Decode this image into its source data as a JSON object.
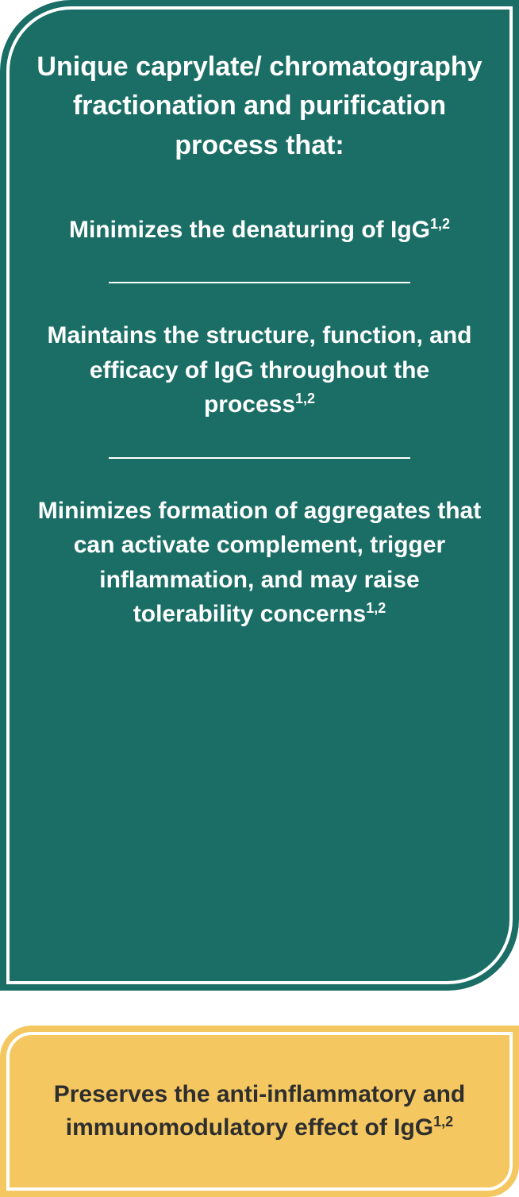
{
  "styles": {
    "main_bg": "#1a6e66",
    "main_text": "#ffffff",
    "border_color": "#ffffff",
    "divider_color": "#ffffff",
    "footer_bg": "#f4c761",
    "footer_text": "#2e2e2e",
    "main_radius": "90px",
    "main_radius_inner": "82px",
    "footer_radius": "40px",
    "footer_radius_inner": "32px",
    "heading_fontsize": 34,
    "point_fontsize": 30,
    "footer_fontsize": 30,
    "divider_width": 380
  },
  "main": {
    "heading": "Unique caprylate/ chromatography fractionation and purification process that:",
    "points": [
      {
        "text": "Minimizes the denaturing of IgG",
        "sup": "1,2"
      },
      {
        "text": "Maintains the structure, function, and efficacy of IgG throughout the process",
        "sup": "1,2"
      },
      {
        "text": "Minimizes formation of aggregates that can activate complement, trigger inflammation, and may raise tolerability concerns",
        "sup": "1,2"
      }
    ]
  },
  "footer": {
    "text": "Preserves the anti-inflammatory and immunomodulatory effect of IgG",
    "sup": "1,2"
  }
}
